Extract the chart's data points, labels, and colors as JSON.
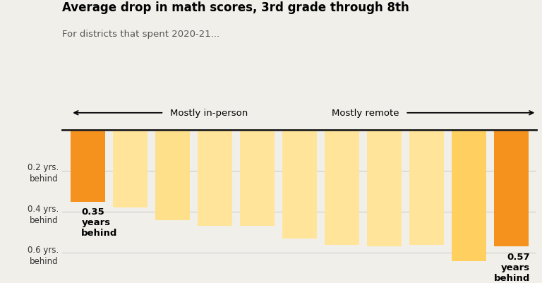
{
  "title": "Average drop in math scores, 3rd grade through 8th",
  "subtitle": "For districts that spent 2020-21...",
  "bar_values": [
    0.35,
    0.38,
    0.44,
    0.47,
    0.47,
    0.53,
    0.56,
    0.57,
    0.56,
    0.64,
    0.57
  ],
  "bar_colors": [
    "#F5921E",
    "#FFE49A",
    "#FFE08A",
    "#FFE49A",
    "#FFE49A",
    "#FFE49A",
    "#FFE49A",
    "#FFE49A",
    "#FFE49A",
    "#FFD060",
    "#F5921E"
  ],
  "highlight_indices": [
    0,
    10
  ],
  "highlight_labels": [
    "0.35\nyears\nbehind",
    "0.57\nyears\nbehind"
  ],
  "arrow_label_left": "Mostly in-person",
  "arrow_label_right": "Mostly remote",
  "ytick_labels": [
    "0.2 yrs.\nbehind",
    "0.4 yrs.\nbehind",
    "0.6 yrs.\nbehind"
  ],
  "ytick_values": [
    0.2,
    0.4,
    0.6
  ],
  "ymin": 0.0,
  "ymax": 0.72,
  "background_color": "#F0EFEA",
  "bar_width": 0.82,
  "n_bars": 11
}
